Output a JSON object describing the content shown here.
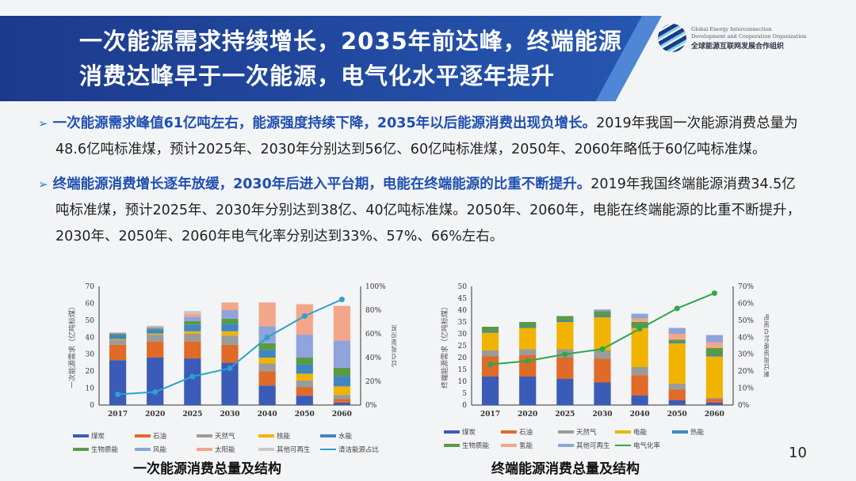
{
  "header": {
    "title_line1": "一次能源需求持续增长，2035年前达峰，终端能源",
    "title_line2": "消费达峰早于一次能源，电气化水平逐年提升",
    "logo": {
      "en1": "Global Energy Interconnection",
      "en2": "Development and Cooperation Organization",
      "cn": "全球能源互联网发展合作组织"
    }
  },
  "bullets": [
    {
      "highlight": "一次能源需求峰值61亿吨左右，能源强度持续下降，2035年以后能源消费出现负增长。",
      "text": "2019年我国一次能源消费总量为48.6亿吨标准煤，预计2025年、2030年分别达到56亿、60亿吨标准煤，2050年、2060年略低于60亿吨标准煤。"
    },
    {
      "highlight": "终端能源消费增长逐年放缓，2030年后进入平台期，电能在终端能源的比重不断提升。",
      "text": "2019年我国终端能源消费34.5亿吨标准煤，预计2025年、2030年分别达到38亿、40亿吨标准煤。2050年、2060年，电能在终端能源的比重不断提升，2030年、2050年、2060年电气化率分别达到33%、57%、66%左右。"
    }
  ],
  "page_number": "10",
  "chart_data": [
    {
      "type": "bar",
      "stacked": true,
      "title": "一次能源消费总量及结构",
      "ylabel": "一次能源需求（亿吨标煤）",
      "y2label": "清洁能源占比",
      "ylim": [
        0,
        70
      ],
      "yticks": [
        0,
        10,
        20,
        30,
        40,
        50,
        60,
        70
      ],
      "y2lim": [
        0,
        100
      ],
      "y2ticks": [
        "0%",
        "20%",
        "40%",
        "60%",
        "80%",
        "100%"
      ],
      "legend": "bottom",
      "categories": [
        "2017",
        "2020",
        "2025",
        "2030",
        "2040",
        "2050",
        "2060"
      ],
      "series": [
        {
          "name": "煤炭",
          "color": "#3b5bb8",
          "values": [
            26.5,
            28,
            27.5,
            25,
            11.5,
            5.5,
            1.5
          ]
        },
        {
          "name": "石油",
          "color": "#e06a28",
          "values": [
            9,
            9.5,
            10,
            10.5,
            8.5,
            5,
            2
          ]
        },
        {
          "name": "天然气",
          "color": "#9b9b9b",
          "values": [
            3,
            4,
            4.5,
            5.5,
            4.5,
            4,
            2.5
          ]
        },
        {
          "name": "核能",
          "color": "#f0b400",
          "values": [
            0.5,
            0.7,
            1.5,
            2.5,
            3.5,
            4,
            5
          ]
        },
        {
          "name": "水能",
          "color": "#3f86c2",
          "values": [
            2.5,
            2.5,
            4,
            4.5,
            4.5,
            5.5,
            6
          ]
        },
        {
          "name": "生物质能",
          "color": "#5a9a45",
          "values": [
            0.5,
            0.5,
            2,
            3,
            4,
            4,
            5
          ]
        },
        {
          "name": "风能",
          "color": "#8fa3dc",
          "values": [
            0.5,
            0.8,
            2.5,
            5,
            10,
            13.5,
            16
          ]
        },
        {
          "name": "太阳能",
          "color": "#f2a68a",
          "values": [
            0.3,
            0.5,
            2,
            4.5,
            14,
            18,
            20.5
          ]
        },
        {
          "name": "其他可再生",
          "color": "#c8c8c8",
          "values": [
            0.2,
            0.3,
            1.5,
            0,
            0,
            0,
            0
          ]
        }
      ],
      "line": {
        "name": "清洁能源占比",
        "color": "#2aa3cc",
        "values": [
          9,
          11,
          24,
          31,
          57,
          75,
          89
        ],
        "unit": "%"
      }
    },
    {
      "type": "bar",
      "stacked": true,
      "title": "终端能源消费总量及结构",
      "ylabel": "终端能源需求（亿吨标煤）",
      "y2label": "电能占终端能源比重",
      "ylim": [
        0,
        50
      ],
      "yticks": [
        0,
        5,
        10,
        15,
        20,
        25,
        30,
        35,
        40,
        45,
        50
      ],
      "y2lim": [
        0,
        70
      ],
      "y2ticks": [
        "0%",
        "10%",
        "20%",
        "30%",
        "40%",
        "50%",
        "60%",
        "70%"
      ],
      "legend": "bottom",
      "categories": [
        "2017",
        "2020",
        "2025",
        "2030",
        "2040",
        "2050",
        "2060"
      ],
      "series": [
        {
          "name": "煤炭",
          "color": "#3b5bb8",
          "values": [
            12,
            12,
            11,
            9.5,
            4,
            2,
            1
          ]
        },
        {
          "name": "石油",
          "color": "#e06a28",
          "values": [
            8.5,
            9,
            9,
            10,
            8.5,
            4.5,
            1.5
          ]
        },
        {
          "name": "天然气",
          "color": "#9b9b9b",
          "values": [
            2.5,
            2.5,
            3.5,
            3.5,
            3.5,
            2.5,
            0.5
          ]
        },
        {
          "name": "电能",
          "color": "#f0b400",
          "values": [
            7.5,
            9,
            11.5,
            14,
            16.5,
            17,
            17.5
          ]
        },
        {
          "name": "热能",
          "color": "#3f86c2",
          "values": [
            0.5,
            0.5,
            0.5,
            0.5,
            0.5,
            0.5,
            0.5
          ]
        },
        {
          "name": "生物质能",
          "color": "#5a9a45",
          "values": [
            2,
            2,
            2,
            2,
            2,
            1,
            3
          ]
        },
        {
          "name": "氢能",
          "color": "#f2a68a",
          "values": [
            0,
            0,
            0,
            0,
            1.5,
            2.5,
            2.5
          ]
        },
        {
          "name": "其他可再生",
          "color": "#8fa3dc",
          "values": [
            0,
            0,
            0,
            0.8,
            2,
            2.5,
            3
          ]
        }
      ],
      "line": {
        "name": "电气化率",
        "color": "#2ca84a",
        "values": [
          24,
          26,
          30,
          33,
          45,
          57,
          66
        ],
        "unit": "%"
      }
    }
  ]
}
